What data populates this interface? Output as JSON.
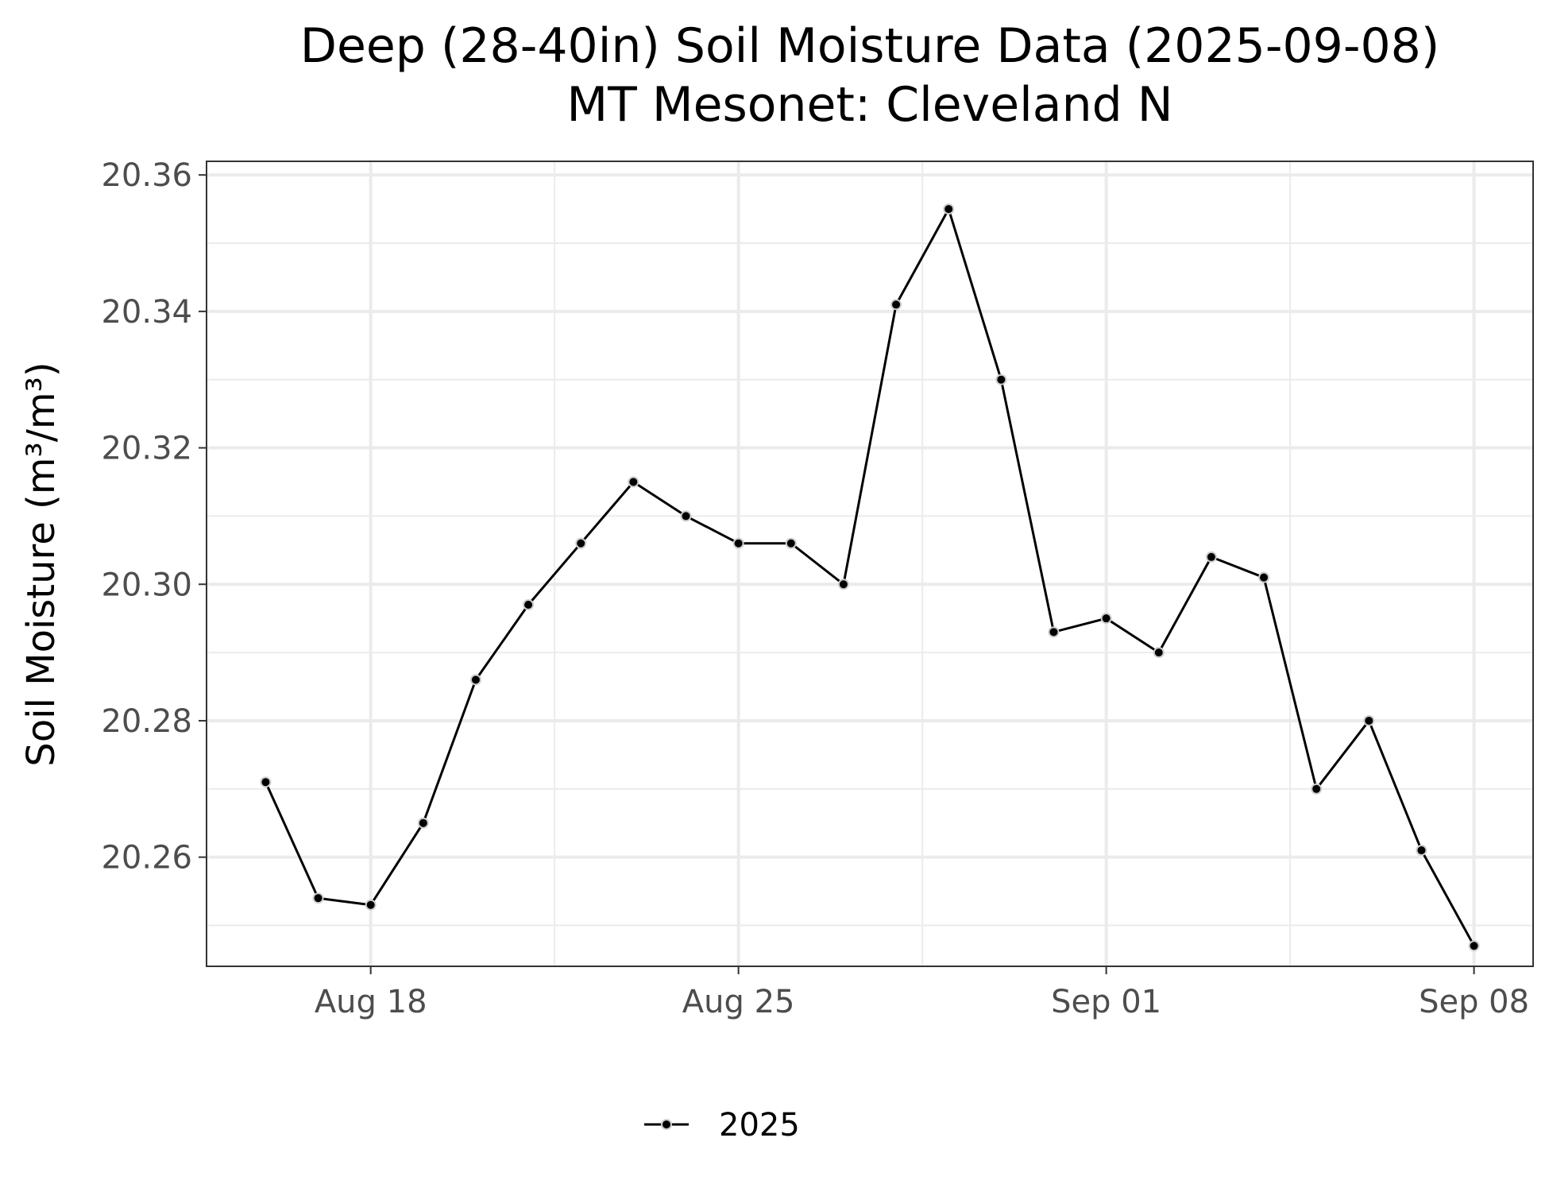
{
  "chart_data": {
    "type": "line",
    "title": "Deep (28-40in) Soil Moisture Data (2025-09-08)",
    "subtitle": "MT Mesonet: Cleveland N",
    "xlabel": "",
    "ylabel": "Soil Moisture (m³/m³)",
    "x_tick_labels": [
      {
        "date": "2025-08-18",
        "label": "Aug 18"
      },
      {
        "date": "2025-08-25",
        "label": "Aug 25"
      },
      {
        "date": "2025-09-01",
        "label": "Sep 01"
      },
      {
        "date": "2025-09-08",
        "label": "Sep 08"
      }
    ],
    "y_ticks": [
      20.26,
      20.28,
      20.3,
      20.32,
      20.34,
      20.36
    ],
    "ylim": [
      20.244,
      20.362
    ],
    "xlim": [
      "2025-08-14T21:00",
      "2025-09-09T03:00"
    ],
    "grid": true,
    "legend_position": "bottom",
    "series": [
      {
        "name": "2025",
        "color": "#000000",
        "x": [
          "2025-08-16",
          "2025-08-17",
          "2025-08-18",
          "2025-08-19",
          "2025-08-20",
          "2025-08-21",
          "2025-08-22",
          "2025-08-23",
          "2025-08-24",
          "2025-08-25",
          "2025-08-26",
          "2025-08-27",
          "2025-08-28",
          "2025-08-29",
          "2025-08-30",
          "2025-08-31",
          "2025-09-01",
          "2025-09-02",
          "2025-09-03",
          "2025-09-04",
          "2025-09-05",
          "2025-09-06",
          "2025-09-07",
          "2025-09-08"
        ],
        "values": [
          20.271,
          20.254,
          20.253,
          20.265,
          20.286,
          20.297,
          20.306,
          20.315,
          20.31,
          20.306,
          20.306,
          20.3,
          20.341,
          20.355,
          20.33,
          20.293,
          20.295,
          20.29,
          20.304,
          20.301,
          20.27,
          20.28,
          20.261,
          20.247
        ]
      }
    ]
  }
}
